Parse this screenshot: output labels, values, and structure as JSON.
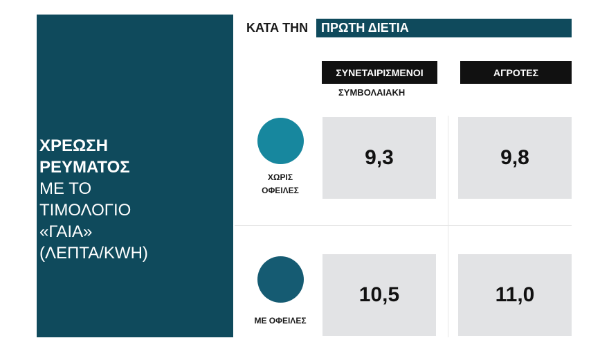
{
  "left_panel": {
    "title_line1": "ΧΡΕΩΣΗ",
    "title_line2": "ΡΕΥΜΑΤΟΣ",
    "line3": "ΜΕ ΤΟ",
    "line4": "ΤΙΜΟΛΟΓΙΟ",
    "line5": "«ΓΑΙΑ»",
    "line6": "(ΛΕΠΤΑ/KWH)"
  },
  "header": {
    "prefix": "ΚΑΤΑ ΤΗΝ",
    "bar_text": "ΠΡΩΤΗ ΔΙΕΤΙΑ"
  },
  "columns": {
    "col1_header": "ΣΥΝΕΤΑΙΡΙΣΜΕΝΟΙ",
    "col1_sub": "ΣΥΜΒΟΛΑΙΑΚΗ",
    "col2_header": "ΑΓΡΟΤΕΣ"
  },
  "rows": {
    "row1_label_line1": "ΧΩΡΙΣ",
    "row1_label_line2": "ΟΦΕΙΛΕΣ",
    "row2_label": "ΜΕ ΟΦΕΙΛΕΣ"
  },
  "colors": {
    "panel": "#0f4a5c",
    "circle_row1": "#17879e",
    "circle_row2": "#155b72",
    "cell": "#e2e3e5",
    "column_header": "#111111"
  },
  "chart_data": {
    "type": "table",
    "columns": [
      "ΣΥΝΕΤΑΙΡΙΣΜΕΝΟΙ ΣΥΜΒΟΛΑΙΑΚΗ",
      "ΑΓΡΟΤΕΣ"
    ],
    "rows": [
      "ΧΩΡΙΣ ΟΦΕΙΛΕΣ",
      "ΜΕ ΟΦΕΙΛΕΣ"
    ],
    "values": [
      [
        "9,3",
        "9,8"
      ],
      [
        "10,5",
        "11,0"
      ]
    ]
  }
}
